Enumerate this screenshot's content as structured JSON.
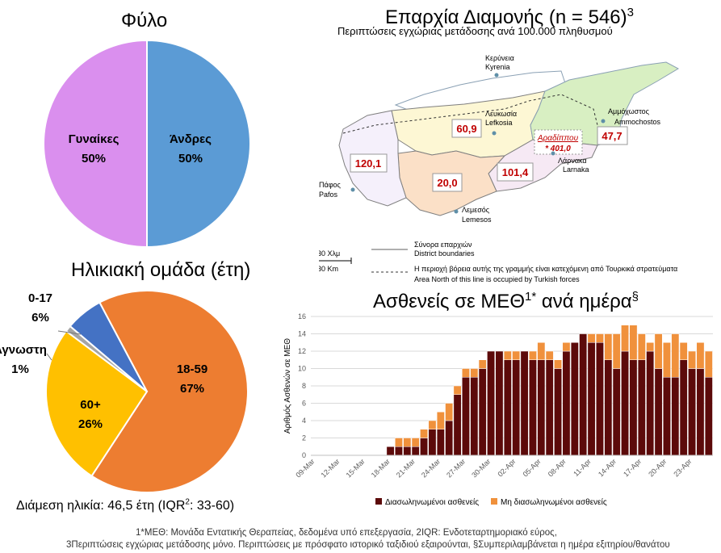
{
  "sex_chart": {
    "title": "Φύλο",
    "type": "pie",
    "slices": [
      {
        "label": "Άνδρες",
        "pct_label": "50%",
        "value": 50,
        "color": "#5b9bd5"
      },
      {
        "label": "Γυναίκες",
        "pct_label": "50%",
        "value": 50,
        "color": "#da8fee"
      }
    ]
  },
  "age_chart": {
    "title": "Ηλικιακή ομάδα (έτη)",
    "type": "pie",
    "slices": [
      {
        "label": "18-59",
        "pct_label": "67%",
        "value": 67,
        "color": "#ed7d31"
      },
      {
        "label": "60+",
        "pct_label": "26%",
        "value": 26,
        "color": "#ffc000"
      },
      {
        "label": "Άγνωστη",
        "pct_label": "1%",
        "value": 1,
        "color": "#a5a5a5"
      },
      {
        "label": "0-17",
        "pct_label": "6%",
        "value": 6,
        "color": "#4472c4"
      }
    ],
    "median": {
      "prefix": "Διάμεση ηλικία: 46,5 έτη (IQR",
      "sup": "2",
      "suffix": ": 33-60)"
    }
  },
  "map": {
    "title": "Επαρχία Διαμονής (n = 546)",
    "title_sup": "3",
    "subtitle": "Περιπτώσεις εγχώριας μετάδοσης ανά 100.000 πληθυσμού",
    "districts": [
      {
        "name_gr": "Κερύνεια",
        "name_en": "Kyrenia"
      },
      {
        "name_gr": "Λευκωσία",
        "name_en": "Lefkosia",
        "rate": "60,9"
      },
      {
        "name_gr": "Αμμόχωστος",
        "name_en": "Ammochostos",
        "rate": "47,7"
      },
      {
        "name_gr": "Λάρνακα",
        "name_en": "Larnaka",
        "rate": "101,4"
      },
      {
        "name_gr": "Λεμεσός",
        "name_en": "Lemesos",
        "rate": "20,0"
      },
      {
        "name_gr": "Πάφος",
        "name_en": "Pafos",
        "rate": "120,1"
      }
    ],
    "special": {
      "name": "Αραδίππου",
      "rate": "* 401,0"
    },
    "scale": {
      "gr": "30 Χλμ",
      "en": "30 Km"
    },
    "legend": {
      "boundaries_gr": "Σύνορα επαρχιών",
      "boundaries_en": "District boundaries",
      "occupied_gr": "Η περιοχή βόρεια αυτής της γραμμής είναι κατεχόμενη από Τουρκικά στρατεύματα",
      "occupied_en": "Area North of this line is occupied by Turkish forces"
    },
    "colors": {
      "sea_border": "#8aa0b4",
      "boundary": "#7f7f7f",
      "rate_text": "#c00000"
    }
  },
  "chart_data": {
    "type": "bar",
    "stacked": true,
    "title": "Ασθενείς σε ΜΕΘ",
    "title_sup": "1*",
    "title_suffix": "ανά ημέρα",
    "title_sup2": "§",
    "ylabel": "Αριθμός Ασθενών σε ΜΕΘ",
    "ylim": [
      0,
      16
    ],
    "yticks": [
      0,
      2,
      4,
      6,
      8,
      10,
      12,
      14,
      16
    ],
    "grid": true,
    "legend_position": "bottom",
    "start_date": "09-Mar",
    "xtick_labels": [
      "09-Mar",
      "12-Mar",
      "15-Mar",
      "18-Mar",
      "21-Mar",
      "24-Mar",
      "27-Mar",
      "30-Mar",
      "02-Apr",
      "05-Apr",
      "08-Apr",
      "11-Apr",
      "14-Apr",
      "17-Apr",
      "20-Apr",
      "23-Apr"
    ],
    "series": [
      {
        "name": "Διασωληνωμένοι ασθενείς",
        "color": "#5c0a0a",
        "values": [
          0,
          0,
          0,
          0,
          0,
          0,
          0,
          0,
          0,
          1,
          1,
          1,
          1,
          2,
          3,
          3,
          4,
          7,
          9,
          9,
          10,
          12,
          12,
          11,
          11,
          12,
          11,
          11,
          11,
          10,
          12,
          13,
          14,
          13,
          13,
          11,
          10,
          12,
          11,
          11,
          12,
          10,
          9,
          9,
          11,
          10,
          10,
          9
        ]
      },
      {
        "name": "Μη διασωληνωμένοι ασθενείς",
        "color": "#f0913c",
        "values": [
          0,
          0,
          0,
          0,
          0,
          0,
          0,
          0,
          0,
          0,
          1,
          1,
          1,
          1,
          1,
          2,
          2,
          1,
          1,
          1,
          1,
          0,
          0,
          1,
          1,
          0,
          1,
          2,
          1,
          1,
          1,
          0,
          0,
          1,
          1,
          3,
          4,
          3,
          4,
          3,
          1,
          4,
          4,
          5,
          2,
          2,
          3,
          3
        ]
      }
    ]
  },
  "footnotes": {
    "line1": "1*ΜΕΘ: Μονάδα Εντατικής Θεραπείας, δεδομένα υπό επεξεργασία, 2IQR: Ενδοτεταρτημοριακό εύρος,",
    "line2": "3Περιπτώσεις εγχώριας μετάδοσης μόνο. Περιπτώσεις με πρόσφατο ιστορικό ταξιδιού εξαιρούνται, §Συμπεριλαμβάνεται η ημέρα εξιτηρίου/θανάτου"
  }
}
